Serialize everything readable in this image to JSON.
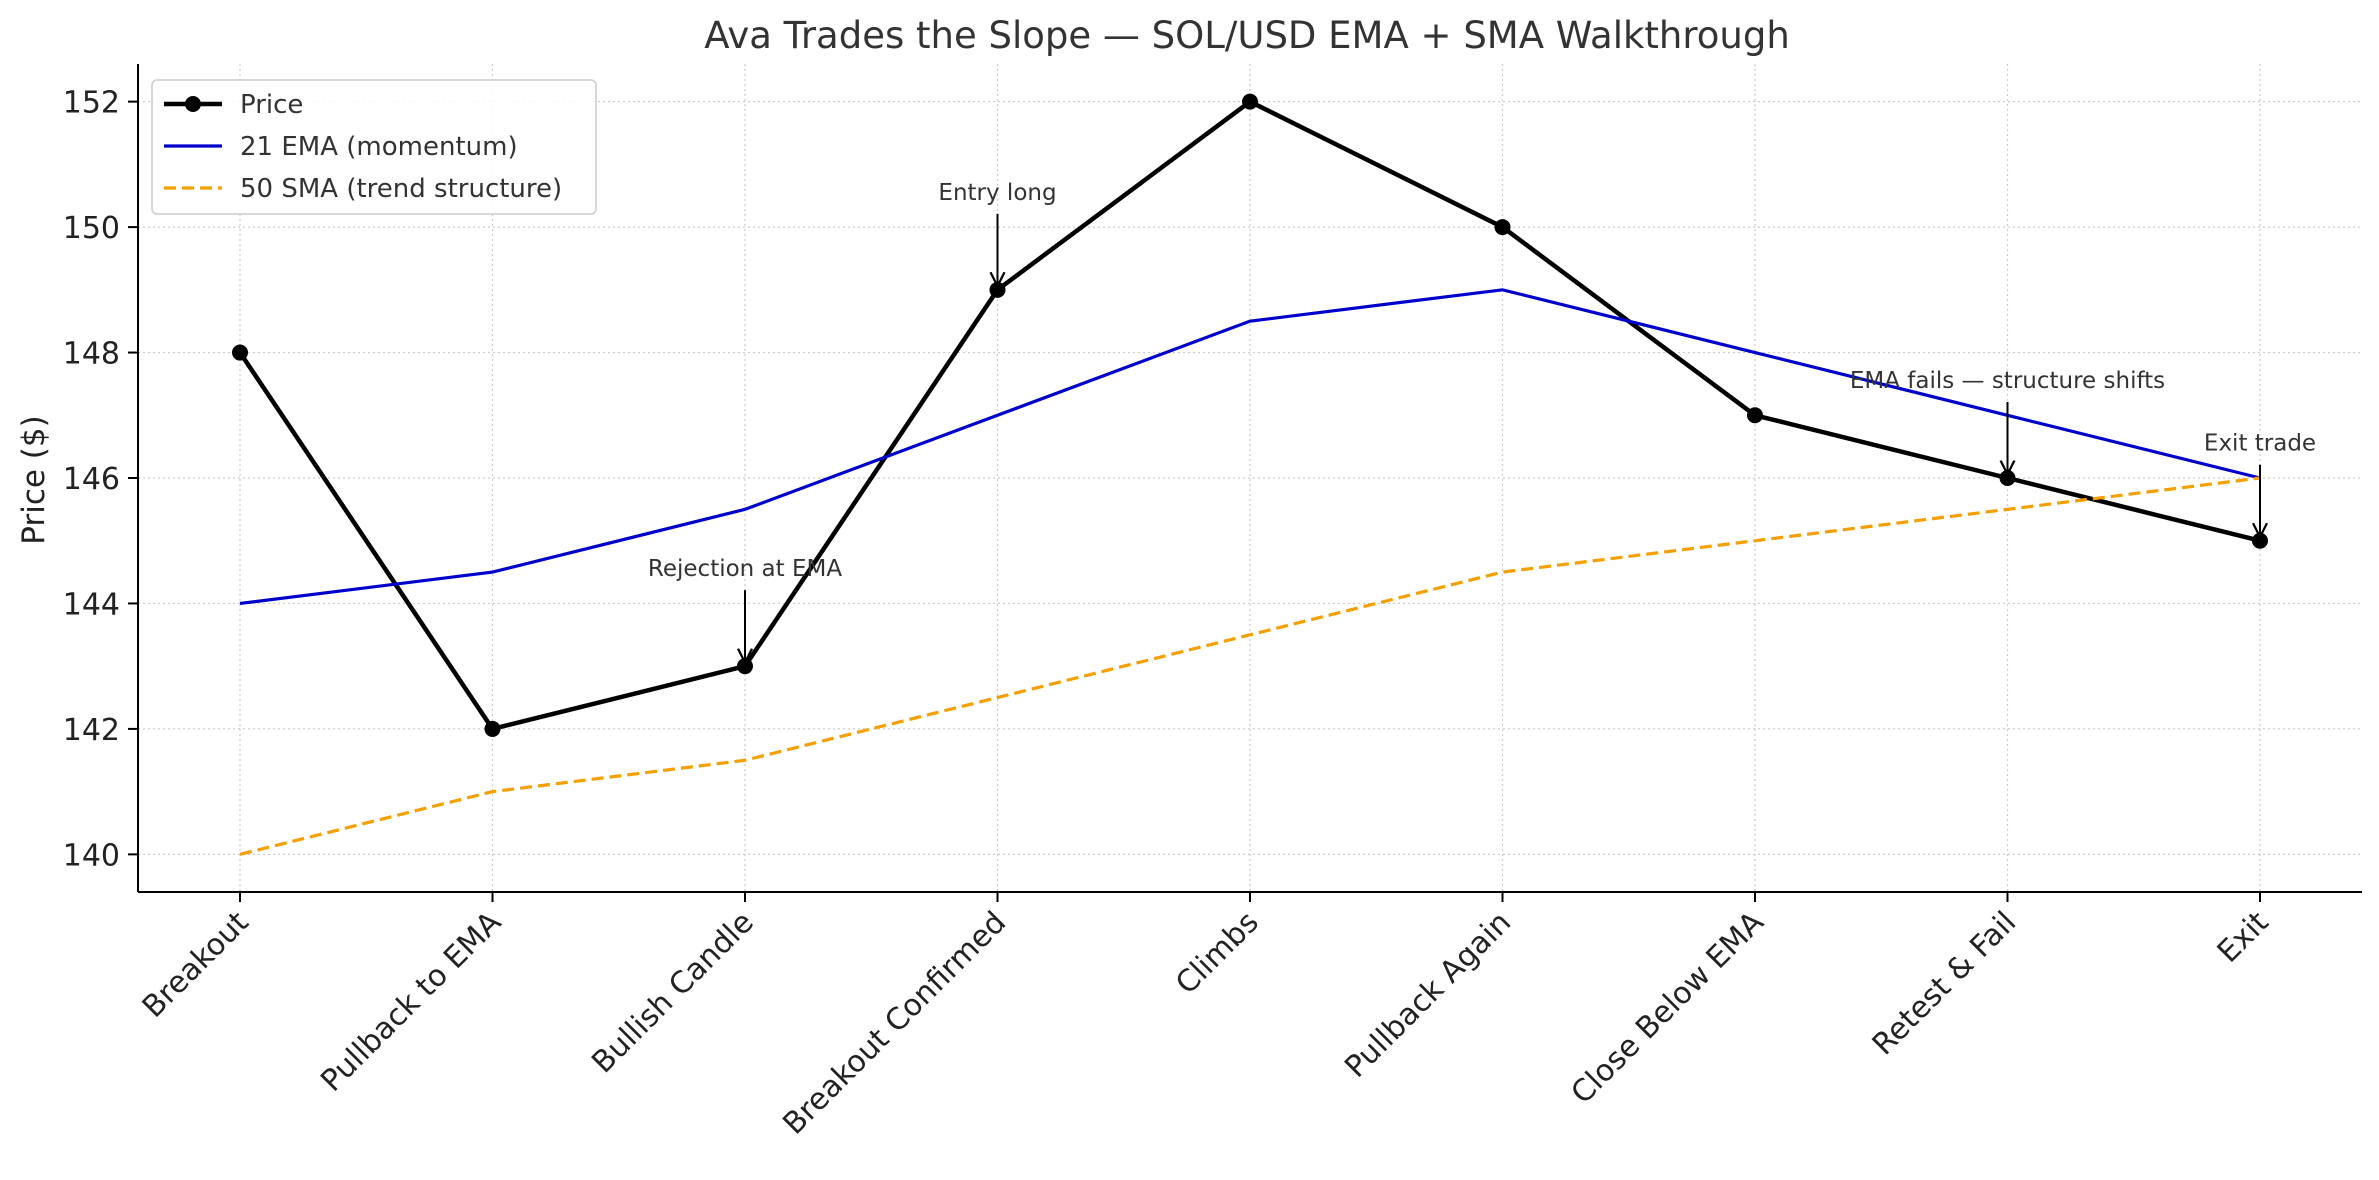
{
  "chart_data": {
    "type": "line",
    "title": "Ava Trades the Slope — SOL/USD EMA + SMA Walkthrough",
    "xlabel": "",
    "ylabel": "Price ($)",
    "ylim": [
      139.4,
      152.6
    ],
    "yticks": [
      140,
      142,
      144,
      146,
      148,
      150,
      152
    ],
    "grid": true,
    "legend_position": "top-left",
    "categories": [
      "Breakout",
      "Pullback to EMA",
      "Bullish Candle",
      "Breakout Confirmed",
      "Climbs",
      "Pullback Again",
      "Close Below EMA",
      "Retest & Fail",
      "Exit"
    ],
    "series": [
      {
        "name": "Price",
        "color": "#000000",
        "style": "solid-markers",
        "values": [
          148,
          142,
          143,
          149,
          152,
          150,
          147,
          146,
          145
        ]
      },
      {
        "name": "21 EMA (momentum)",
        "color": "#0000cc",
        "style": "solid",
        "values": [
          144,
          144.5,
          145.5,
          147,
          148.5,
          149,
          148,
          147,
          146
        ]
      },
      {
        "name": "50 SMA (trend structure)",
        "color": "#f5a000",
        "style": "dashed",
        "values": [
          140,
          141,
          141.5,
          142.5,
          143.5,
          144.5,
          145,
          145.5,
          146
        ]
      }
    ],
    "annotations": [
      {
        "text": "Rejection at EMA",
        "index": 2,
        "value": 143
      },
      {
        "text": "Entry long",
        "index": 3,
        "value": 149
      },
      {
        "text": "EMA fails — structure shifts",
        "index": 7,
        "value": 146
      },
      {
        "text": "Exit trade",
        "index": 8,
        "value": 145
      }
    ]
  }
}
